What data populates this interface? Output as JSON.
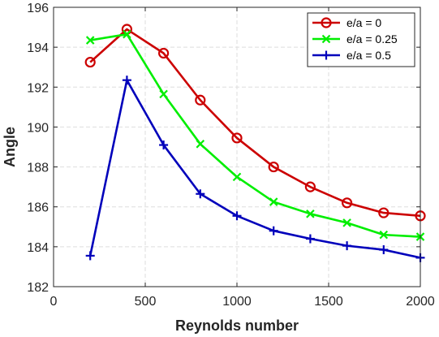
{
  "chart_data": {
    "type": "line",
    "xlabel": "Reynolds number",
    "ylabel": "Angle",
    "xlim": [
      0,
      2000
    ],
    "ylim": [
      182,
      196
    ],
    "xticks": [
      0,
      500,
      1000,
      1500,
      2000
    ],
    "yticks": [
      182,
      184,
      186,
      188,
      190,
      192,
      194,
      196
    ],
    "grid": true,
    "legend_position": "top-right",
    "x": [
      200,
      400,
      600,
      800,
      1000,
      1200,
      1400,
      1600,
      1800,
      2000
    ],
    "series": [
      {
        "name": "e/a = 0",
        "color": "#cc0000",
        "marker": "circle",
        "values": [
          193.25,
          194.9,
          193.7,
          191.35,
          189.45,
          188.0,
          187.0,
          186.2,
          185.7,
          185.55
        ]
      },
      {
        "name": "e/a = 0.25",
        "color": "#00ee00",
        "marker": "x",
        "values": [
          194.35,
          194.65,
          191.65,
          189.15,
          187.5,
          186.25,
          185.65,
          185.2,
          184.6,
          184.5
        ]
      },
      {
        "name": "e/a = 0.5",
        "color": "#0000bb",
        "marker": "plus",
        "values": [
          183.55,
          192.35,
          189.1,
          186.65,
          185.55,
          184.8,
          184.4,
          184.05,
          183.85,
          183.45
        ]
      }
    ]
  }
}
